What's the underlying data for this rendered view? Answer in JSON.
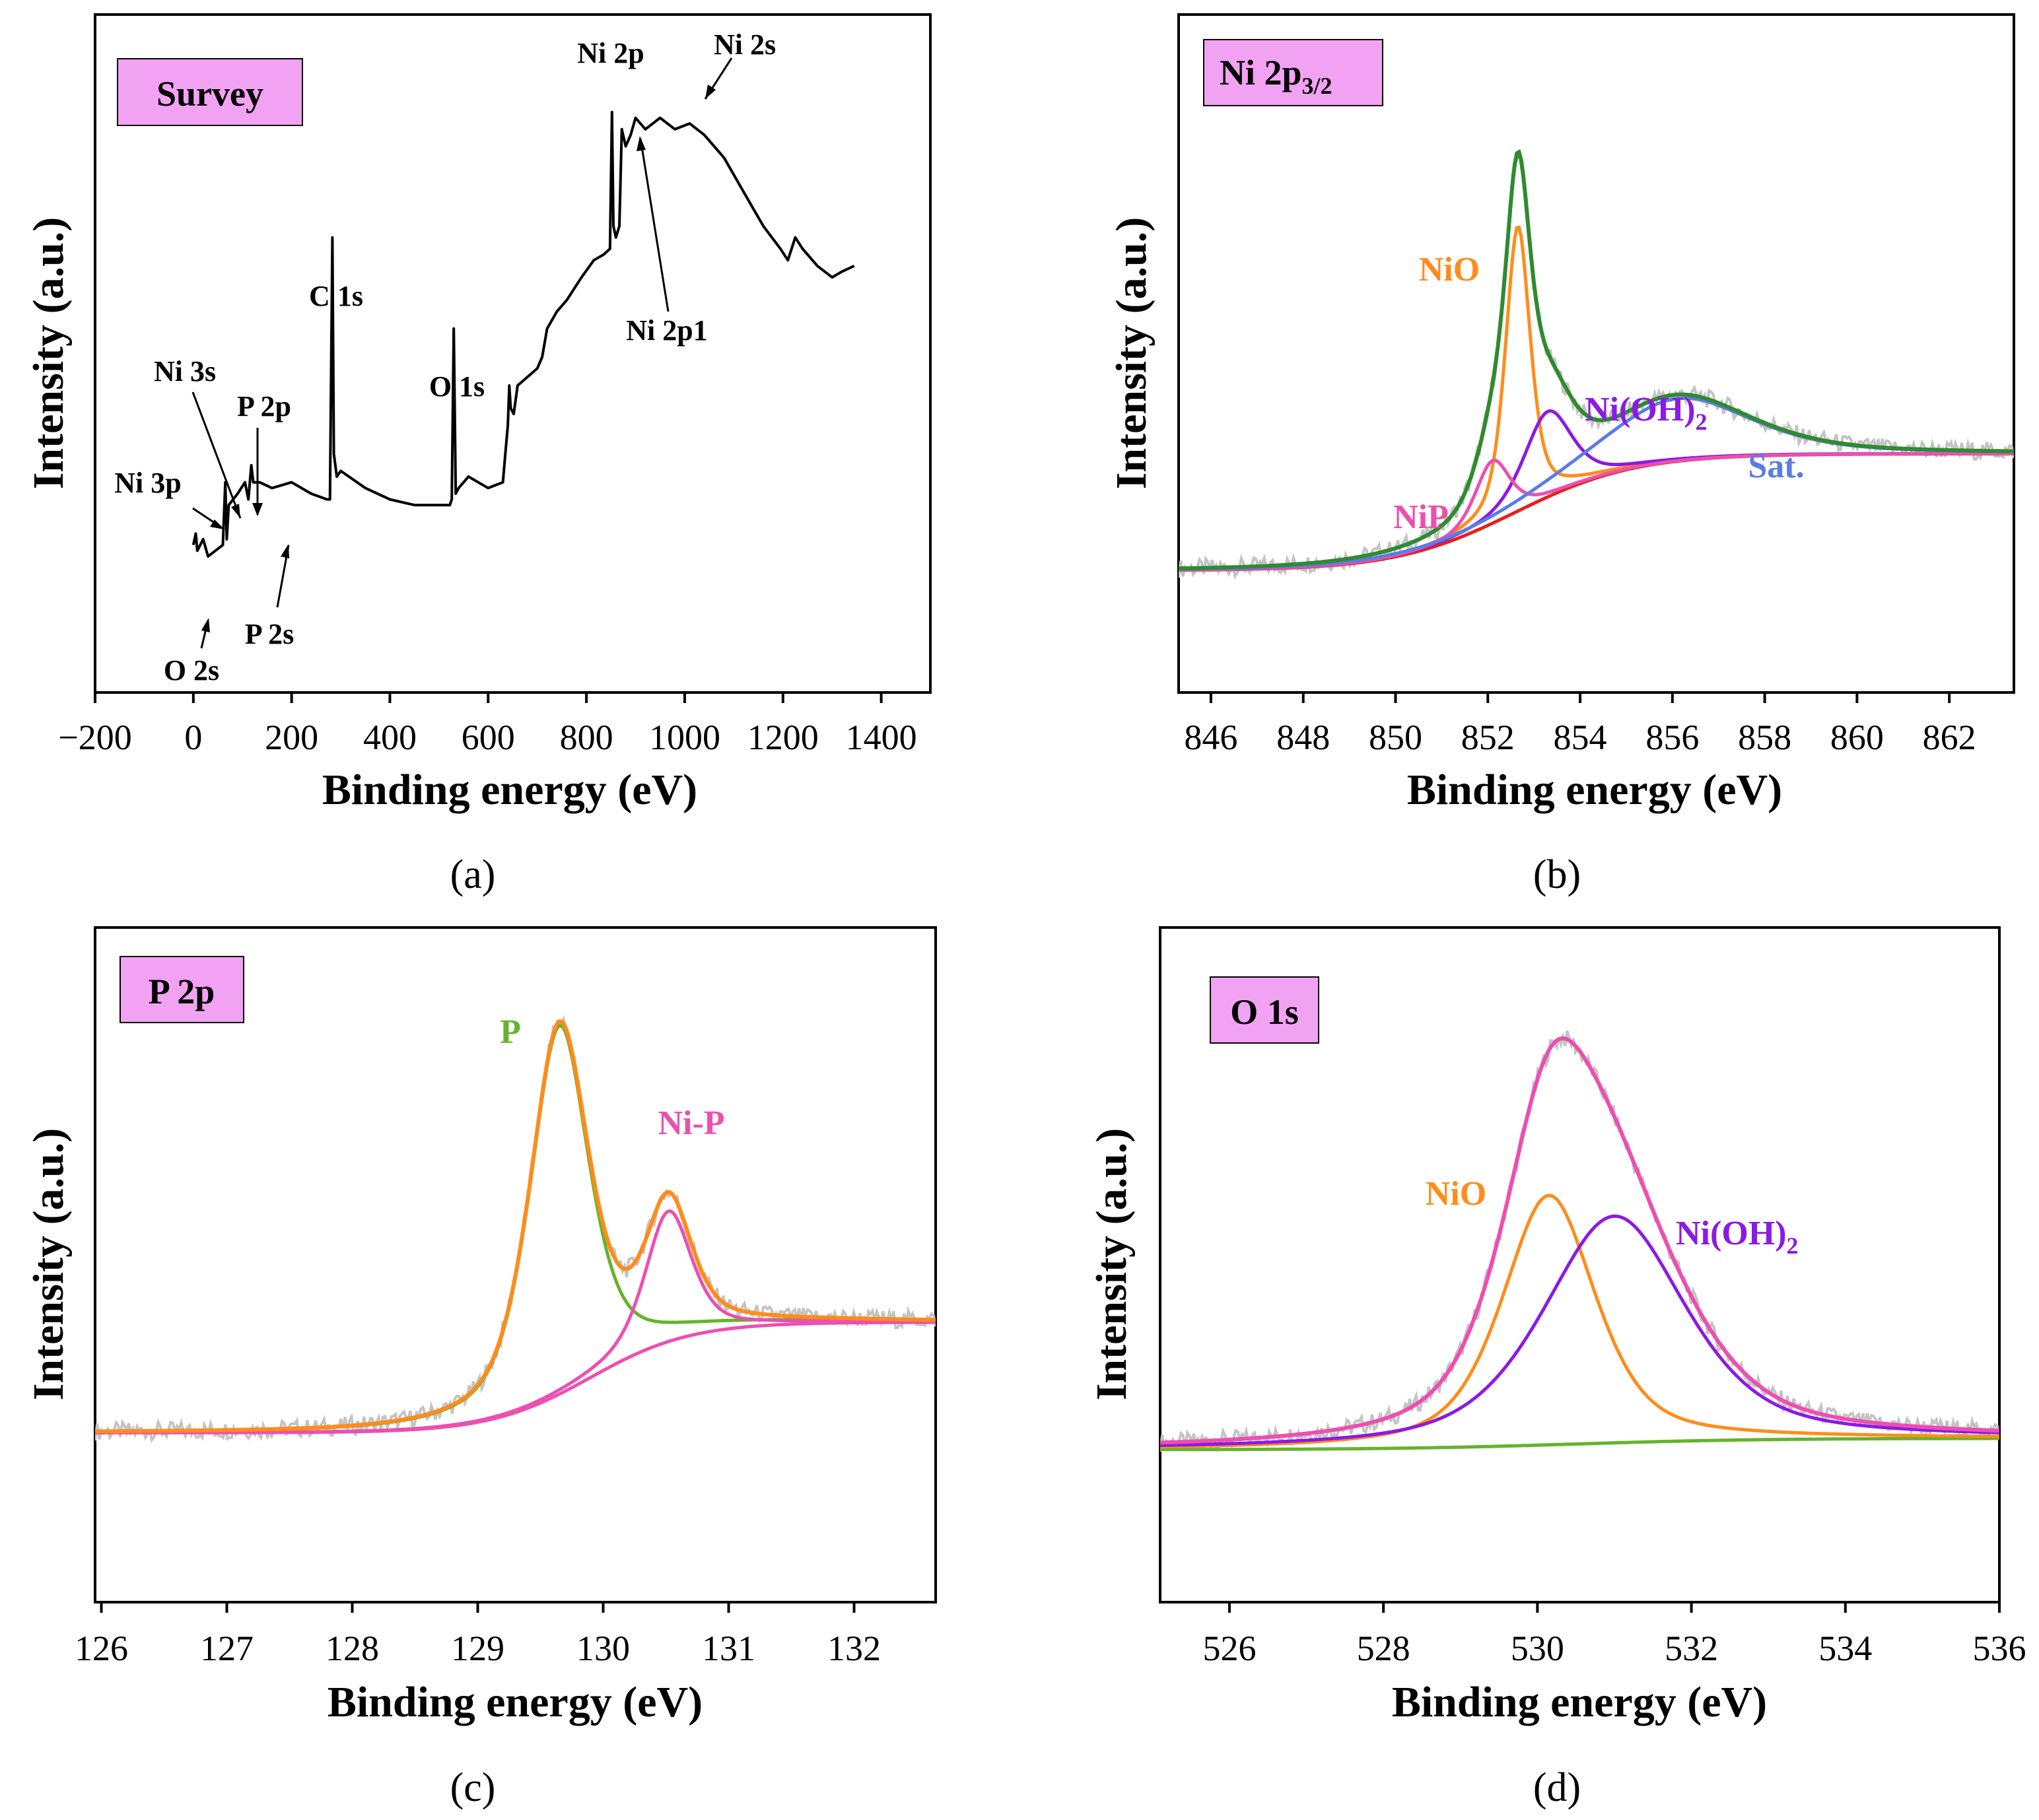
{
  "colors": {
    "raw": "#c4c4c4",
    "survey": "#000000",
    "green": "#2e8b2e",
    "orange": "#ff8c1a",
    "purple": "#8b1ae6",
    "blue": "#5a7ce8",
    "red": "#e81e1e",
    "pink": "#ec4fb0",
    "olive": "#66b32e",
    "box_fill": "#f2a2f2"
  },
  "chart_data": [
    {
      "id": "a",
      "type": "line",
      "caption": "(a)",
      "title": "Survey",
      "xlabel": "Binding energy (eV)",
      "ylabel": "Intensity (a.u.)",
      "xlim": [
        -200,
        1500
      ],
      "ylim": [
        0,
        100
      ],
      "xticks": [
        -200,
        0,
        200,
        400,
        600,
        800,
        1000,
        1200,
        1400
      ],
      "xtick_labels": [
        "−200",
        "0",
        "200",
        "400",
        "600",
        "800",
        "1000",
        "1200",
        "1400"
      ],
      "series": [
        {
          "name": "survey",
          "color": "#000000",
          "points": [
            [
              0,
              14
            ],
            [
              5,
              16
            ],
            [
              8,
              13
            ],
            [
              20,
              15
            ],
            [
              30,
              12
            ],
            [
              45,
              13
            ],
            [
              60,
              14
            ],
            [
              65,
              25
            ],
            [
              68,
              15
            ],
            [
              72,
              21
            ],
            [
              90,
              23
            ],
            [
              105,
              25
            ],
            [
              112,
              22
            ],
            [
              118,
              28
            ],
            [
              122,
              25
            ],
            [
              135,
              25
            ],
            [
              160,
              24
            ],
            [
              200,
              25
            ],
            [
              240,
              23
            ],
            [
              272,
              22
            ],
            [
              278,
              22
            ],
            [
              283,
              68
            ],
            [
              286,
              30
            ],
            [
              292,
              26
            ],
            [
              300,
              27
            ],
            [
              350,
              24
            ],
            [
              400,
              22
            ],
            [
              450,
              21
            ],
            [
              490,
              21
            ],
            [
              522,
              21
            ],
            [
              526,
              22
            ],
            [
              530,
              52
            ],
            [
              534,
              23
            ],
            [
              540,
              24
            ],
            [
              560,
              26
            ],
            [
              600,
              24
            ],
            [
              630,
              25
            ],
            [
              635,
              30
            ],
            [
              640,
              35
            ],
            [
              643,
              42
            ],
            [
              646,
              38
            ],
            [
              652,
              37
            ],
            [
              660,
              42
            ],
            [
              700,
              45
            ],
            [
              710,
              47
            ],
            [
              720,
              52
            ],
            [
              740,
              55
            ],
            [
              760,
              57
            ],
            [
              790,
              61
            ],
            [
              815,
              64
            ],
            [
              835,
              65
            ],
            [
              848,
              66
            ],
            [
              852,
              90
            ],
            [
              855,
              70
            ],
            [
              860,
              68
            ],
            [
              867,
              70
            ],
            [
              872,
              87
            ],
            [
              880,
              84
            ],
            [
              890,
              86
            ],
            [
              900,
              89
            ],
            [
              920,
              87
            ],
            [
              950,
              89
            ],
            [
              980,
              87
            ],
            [
              1010,
              88
            ],
            [
              1040,
              86
            ],
            [
              1080,
              82
            ],
            [
              1120,
              76
            ],
            [
              1160,
              70
            ],
            [
              1195,
              66
            ],
            [
              1210,
              64
            ],
            [
              1225,
              68
            ],
            [
              1240,
              66
            ],
            [
              1270,
              63
            ],
            [
              1300,
              61
            ],
            [
              1320,
              62
            ],
            [
              1345,
              63
            ]
          ]
        }
      ],
      "annotations": [
        "Ni 2p",
        "Ni 2s",
        "C 1s",
        "O 1s",
        "Ni 3s",
        "P 2p",
        "Ni 3p",
        "P 2s",
        "O 2s",
        "Ni 2p1"
      ]
    },
    {
      "id": "b",
      "type": "line",
      "caption": "(b)",
      "title_main": "Ni 2p",
      "title_sub": "3/2",
      "xlabel": "Binding energy (eV)",
      "ylabel": "Intensity (a.u.)",
      "xlim": [
        845.3,
        863.4
      ],
      "ylim": [
        0,
        100
      ],
      "xticks": [
        846,
        848,
        850,
        852,
        854,
        856,
        858,
        860,
        862
      ],
      "xtick_labels": [
        "846",
        "848",
        "850",
        "852",
        "854",
        "856",
        "858",
        "860",
        "862"
      ],
      "baseline": {
        "lo": 9.5,
        "hi": 30,
        "center": 852.6,
        "width": 1.3
      },
      "peaks": [
        {
          "name": "NiO",
          "center": 852.65,
          "amp": 50,
          "width": 0.32,
          "color": "#ff8c1a"
        },
        {
          "name": "Ni(OH)2",
          "center": 853.3,
          "amp": 15,
          "width": 0.62,
          "color": "#8b1ae6"
        },
        {
          "name": "NiP",
          "center": 852.1,
          "amp": 11,
          "width": 0.45,
          "color": "#ec4fb0"
        },
        {
          "name": "Sat.",
          "center": 856.1,
          "amp": 11,
          "width": 1.9,
          "color": "#5a7ce8"
        }
      ],
      "envelope_color": "#2e8b2e",
      "baseline_color": "#e81e1e",
      "component_labels": [
        {
          "main": "NiO",
          "color": "#ff8c1a"
        },
        {
          "main": "Ni(OH)",
          "sub": "2",
          "color": "#8b1ae6"
        },
        {
          "main": "Sat.",
          "color": "#5a7ce8"
        },
        {
          "main": "NiP",
          "color": "#ec4fb0"
        }
      ]
    },
    {
      "id": "c",
      "type": "line",
      "caption": "(c)",
      "title": "P 2p",
      "xlabel": "Binding energy (eV)",
      "ylabel": "Intensity (a.u.)",
      "xlim": [
        125.95,
        132.65
      ],
      "ylim": [
        0,
        100
      ],
      "xticks": [
        126,
        127,
        128,
        129,
        130,
        131,
        132
      ],
      "xtick_labels": [
        "126",
        "127",
        "128",
        "129",
        "130",
        "131",
        "132"
      ],
      "baseline": {
        "lo": 18,
        "hi": 37.5,
        "center": 129.9,
        "width": 0.4
      },
      "peaks": [
        {
          "name": "P",
          "center": 129.65,
          "amp": 65,
          "width": 0.28,
          "color": "#66b32e"
        },
        {
          "name": "Ni-P",
          "center": 130.52,
          "amp": 23,
          "width": 0.22,
          "color": "#ec4fb0"
        }
      ],
      "envelope_color": "#ff8c1a",
      "baseline_color": "#ec4fb0",
      "component_labels": [
        {
          "main": "P",
          "color": "#66b32e"
        },
        {
          "main": "Ni-P",
          "color": "#ec4fb0"
        }
      ]
    },
    {
      "id": "d",
      "type": "line",
      "caption": "(d)",
      "title": "O 1s",
      "xlabel": "Binding energy (eV)",
      "ylabel": "Intensity (a.u.)",
      "xlim": [
        525.1,
        536.0
      ],
      "ylim": [
        0,
        100
      ],
      "xticks": [
        526,
        528,
        530,
        532,
        534,
        536
      ],
      "xtick_labels": [
        "526",
        "528",
        "530",
        "532",
        "534",
        "536"
      ],
      "baseline": {
        "lo": 15,
        "hi": 17,
        "center": 530.5,
        "width": 1.2
      },
      "peaks": [
        {
          "name": "NiO",
          "center": 530.15,
          "amp": 44,
          "width": 0.72,
          "color": "#ff8c1a"
        },
        {
          "name": "Ni(OH)2",
          "center": 531.0,
          "amp": 40,
          "width": 1.1,
          "color": "#8b1ae6"
        }
      ],
      "envelope_color": "#ec4fb0",
      "baseline_color": "#66b32e",
      "component_labels": [
        {
          "main": "NiO",
          "color": "#ff8c1a"
        },
        {
          "main": "Ni(OH)",
          "sub": "2",
          "color": "#8b1ae6"
        }
      ]
    }
  ]
}
